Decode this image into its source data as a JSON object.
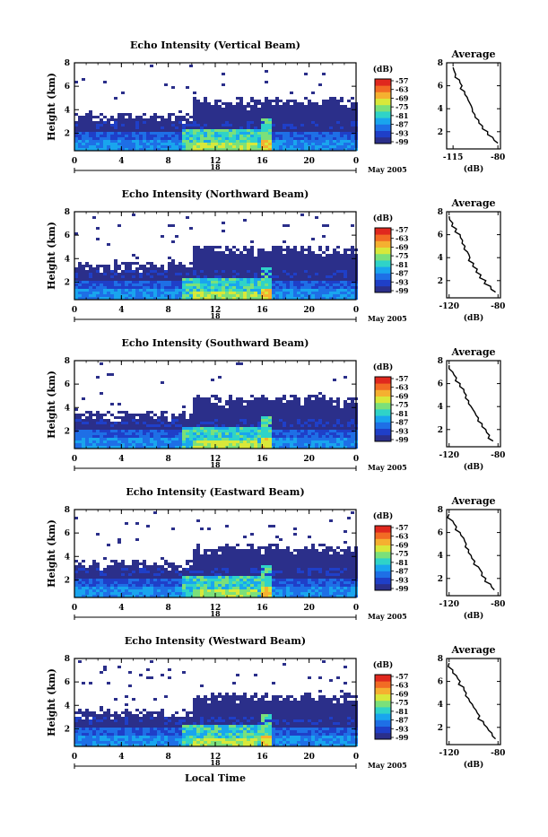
{
  "figure": {
    "xlabel": "Local Time",
    "date_label": "May 2005",
    "day_label": "18",
    "colorbar_unit": "(dB)",
    "colorbar_ticks": [
      "-57",
      "-63",
      "-69",
      "-75",
      "-81",
      "-87",
      "-93",
      "-99"
    ],
    "avg_title": "Average",
    "avg_xlabel": "(dB)",
    "ylabel": "Height (km)",
    "colors": [
      "#2b2f8a",
      "#1f3fc8",
      "#1e6fe6",
      "#19a5ee",
      "#2fd3c8",
      "#7be07a",
      "#d8e83a",
      "#f5b030",
      "#f26b24",
      "#e0281e"
    ]
  },
  "chart_data": [
    {
      "type": "heatmap",
      "title": "Echo Intensity (Vertical Beam)",
      "ylabel": "Height (km)",
      "x_ticks": [
        "0",
        "4",
        "8",
        "12",
        "16",
        "20",
        "0"
      ],
      "y_ticks": [
        "2",
        "4",
        "6",
        "8"
      ],
      "xlim": [
        0,
        24
      ],
      "ylim": [
        0.5,
        8
      ],
      "colorbar": {
        "unit": "dB",
        "range": [
          -99,
          -57
        ]
      },
      "average_profile": {
        "title": "Average",
        "xlabel": "(dB)",
        "x_ticks": [
          "-115",
          "-80"
        ],
        "xlim": [
          -120,
          -78
        ],
        "ylim": [
          0.5,
          8
        ],
        "x": [
          -80,
          -84,
          -88,
          -92,
          -95,
          -98,
          -100,
          -102,
          -104,
          -106,
          -108,
          -110,
          -113,
          -115
        ],
        "y": [
          1,
          1.5,
          2,
          2.5,
          3,
          3.5,
          4,
          4.5,
          5,
          5.5,
          6,
          6.5,
          7,
          7.6
        ]
      }
    },
    {
      "type": "heatmap",
      "title": "Echo Intensity (Northward Beam)",
      "ylabel": "Height (km)",
      "x_ticks": [
        "0",
        "4",
        "8",
        "12",
        "16",
        "20",
        "0"
      ],
      "y_ticks": [
        "2",
        "4",
        "6",
        "8"
      ],
      "xlim": [
        0,
        24
      ],
      "ylim": [
        0.5,
        8
      ],
      "colorbar": {
        "unit": "dB",
        "range": [
          -99,
          -57
        ]
      },
      "average_profile": {
        "title": "Average",
        "xlabel": "(dB)",
        "x_ticks": [
          "-120",
          "-80"
        ],
        "xlim": [
          -122,
          -78
        ],
        "ylim": [
          0.5,
          8
        ],
        "x": [
          -82,
          -86,
          -90,
          -94,
          -97,
          -100,
          -103,
          -105,
          -107,
          -109,
          -111,
          -114,
          -117,
          -120
        ],
        "y": [
          1,
          1.5,
          2,
          2.5,
          3,
          3.5,
          4,
          4.5,
          5,
          5.5,
          6,
          6.5,
          7,
          7.6
        ]
      }
    },
    {
      "type": "heatmap",
      "title": "Echo Intensity (Southward Beam)",
      "ylabel": "Height (km)",
      "x_ticks": [
        "0",
        "4",
        "8",
        "12",
        "16",
        "20",
        "0"
      ],
      "y_ticks": [
        "2",
        "4",
        "6",
        "8"
      ],
      "xlim": [
        0,
        24
      ],
      "ylim": [
        0.5,
        8
      ],
      "colorbar": {
        "unit": "dB",
        "range": [
          -99,
          -57
        ]
      },
      "average_profile": {
        "title": "Average",
        "xlabel": "(dB)",
        "x_ticks": [
          "-120",
          "-80"
        ],
        "xlim": [
          -122,
          -78
        ],
        "ylim": [
          0.5,
          8
        ],
        "x": [
          -84,
          -87,
          -90,
          -93,
          -96,
          -99,
          -102,
          -104,
          -106,
          -108,
          -111,
          -114,
          -117,
          -120
        ],
        "y": [
          1,
          1.5,
          2,
          2.5,
          3,
          3.5,
          4,
          4.5,
          5,
          5.5,
          6,
          6.5,
          7,
          7.6
        ]
      }
    },
    {
      "type": "heatmap",
      "title": "Echo Intensity (Eastward Beam)",
      "ylabel": "Height (km)",
      "x_ticks": [
        "0",
        "4",
        "8",
        "12",
        "16",
        "20",
        "0"
      ],
      "y_ticks": [
        "2",
        "4",
        "6",
        "8"
      ],
      "xlim": [
        0,
        24
      ],
      "ylim": [
        0.5,
        8
      ],
      "colorbar": {
        "unit": "dB",
        "range": [
          -99,
          -57
        ]
      },
      "average_profile": {
        "title": "Average",
        "xlabel": "(dB)",
        "x_ticks": [
          "-120",
          "-80"
        ],
        "xlim": [
          -122,
          -78
        ],
        "ylim": [
          0.5,
          8
        ],
        "x": [
          -83,
          -86,
          -90,
          -93,
          -96,
          -99,
          -102,
          -104,
          -106,
          -108,
          -111,
          -114,
          -117,
          -120
        ],
        "y": [
          1,
          1.5,
          2,
          2.5,
          3,
          3.5,
          4,
          4.5,
          5,
          5.5,
          6,
          6.5,
          7,
          7.6
        ]
      }
    },
    {
      "type": "heatmap",
      "title": "Echo Intensity (Westward Beam)",
      "ylabel": "Height (km)",
      "x_ticks": [
        "0",
        "4",
        "8",
        "12",
        "16",
        "20",
        "0"
      ],
      "y_ticks": [
        "2",
        "4",
        "6",
        "8"
      ],
      "xlim": [
        0,
        24
      ],
      "ylim": [
        0.5,
        8
      ],
      "colorbar": {
        "unit": "dB",
        "range": [
          -99,
          -57
        ]
      },
      "average_profile": {
        "title": "Average",
        "xlabel": "(dB)",
        "x_ticks": [
          "-120",
          "-80"
        ],
        "xlim": [
          -122,
          -78
        ],
        "ylim": [
          0.5,
          8
        ],
        "x": [
          -82,
          -85,
          -89,
          -92,
          -95,
          -98,
          -101,
          -104,
          -106,
          -108,
          -111,
          -114,
          -117,
          -120
        ],
        "y": [
          1,
          1.5,
          2,
          2.5,
          3,
          3.5,
          4,
          4.5,
          5,
          5.5,
          6,
          6.5,
          7,
          7.6
        ]
      }
    }
  ]
}
